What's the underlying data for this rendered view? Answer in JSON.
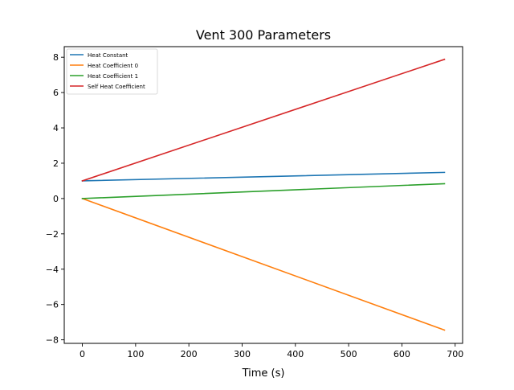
{
  "chart_data": {
    "type": "line",
    "title": "Vent 300 Parameters",
    "xlabel": "Time (s)",
    "ylabel": "",
    "xlim": [
      -34,
      714
    ],
    "ylim": [
      -8.2,
      8.6
    ],
    "xticks": [
      0,
      100,
      200,
      300,
      400,
      500,
      600,
      700
    ],
    "yticks": [
      -8,
      -6,
      -4,
      -2,
      0,
      2,
      4,
      6,
      8
    ],
    "grid": false,
    "legend": "top-left",
    "series": [
      {
        "name": "Heat Constant",
        "color": "#1f77b4",
        "x": [
          0,
          680
        ],
        "y": [
          1.0,
          1.48
        ]
      },
      {
        "name": "Heat Coefficient 0",
        "color": "#ff7f0e",
        "x": [
          0,
          680
        ],
        "y": [
          0.0,
          -7.45
        ]
      },
      {
        "name": "Heat Coefficient 1",
        "color": "#2ca02c",
        "x": [
          0,
          680
        ],
        "y": [
          0.0,
          0.84
        ]
      },
      {
        "name": "Self Heat Coefficient",
        "color": "#d62728",
        "x": [
          0,
          680
        ],
        "y": [
          1.0,
          7.88
        ]
      }
    ]
  }
}
